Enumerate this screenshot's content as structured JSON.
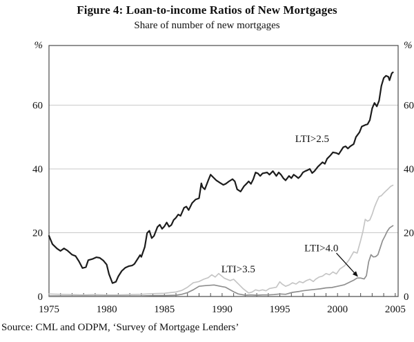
{
  "figure": {
    "title": "Figure 4: Loan-to-income Ratios of New Mortgages",
    "subtitle": "Share of number of new mortgages",
    "source": "Source: CML and ODPM, ‘Survey of Mortgage Lenders’"
  },
  "chart_data": {
    "type": "line",
    "title": "Figure 4: Loan-to-income Ratios of New Mortgages",
    "subtitle": "Share of number of new mortgages",
    "unit": "%",
    "x_axis": {
      "min": 1975,
      "max": 2005.25,
      "tick_interval": 1,
      "tick_labels": [
        1975,
        1980,
        1985,
        1990,
        1995,
        2000,
        2005
      ]
    },
    "y_axis": {
      "min": 0,
      "max": 78.7,
      "unit_label": "%",
      "gridlines": [
        20,
        40,
        60
      ],
      "tick_labels": [
        0,
        20,
        40,
        60
      ],
      "sides": "both",
      "grid": true
    },
    "legend_position": "inline-annotations",
    "style": {
      "frame_color": "#4a4a4a",
      "grid_color": "#c9c9c9",
      "tick_color": "#4a4a4a",
      "text_color": "#111111",
      "arrow_color": "#111111",
      "background": "#ffffff"
    },
    "series": [
      {
        "name": "LTI>3.5",
        "color": "#c5c5c5",
        "width": 1.7,
        "points": [
          [
            1975.0,
            0.8
          ],
          [
            1976.0,
            0.7
          ],
          [
            1977.0,
            0.6
          ],
          [
            1978.0,
            0.5
          ],
          [
            1979.0,
            0.6
          ],
          [
            1980.0,
            0.5
          ],
          [
            1981.0,
            0.5
          ],
          [
            1982.0,
            0.6
          ],
          [
            1983.0,
            0.7
          ],
          [
            1984.0,
            0.9
          ],
          [
            1985.0,
            1.0
          ],
          [
            1985.5,
            1.2
          ],
          [
            1986.0,
            1.4
          ],
          [
            1986.5,
            1.9
          ],
          [
            1987.0,
            2.9
          ],
          [
            1987.5,
            4.3
          ],
          [
            1988.0,
            4.7
          ],
          [
            1988.4,
            5.4
          ],
          [
            1988.8,
            5.9
          ],
          [
            1989.1,
            6.8
          ],
          [
            1989.4,
            6.1
          ],
          [
            1989.7,
            7.2
          ],
          [
            1990.2,
            5.7
          ],
          [
            1990.7,
            5.0
          ],
          [
            1991.0,
            5.4
          ],
          [
            1991.5,
            3.6
          ],
          [
            1991.8,
            2.5
          ],
          [
            1992.3,
            1.1
          ],
          [
            1992.6,
            1.4
          ],
          [
            1992.9,
            2.1
          ],
          [
            1993.2,
            1.8
          ],
          [
            1993.5,
            2.1
          ],
          [
            1993.8,
            1.8
          ],
          [
            1994.1,
            2.5
          ],
          [
            1994.7,
            2.9
          ],
          [
            1995.0,
            4.6
          ],
          [
            1995.2,
            3.9
          ],
          [
            1995.5,
            3.2
          ],
          [
            1995.8,
            3.6
          ],
          [
            1996.1,
            4.3
          ],
          [
            1996.4,
            3.9
          ],
          [
            1996.7,
            4.7
          ],
          [
            1997.0,
            4.3
          ],
          [
            1997.3,
            5.0
          ],
          [
            1997.6,
            5.4
          ],
          [
            1997.9,
            4.7
          ],
          [
            1998.1,
            5.4
          ],
          [
            1998.4,
            6.1
          ],
          [
            1998.7,
            6.4
          ],
          [
            1999.0,
            7.2
          ],
          [
            1999.3,
            6.8
          ],
          [
            1999.6,
            7.7
          ],
          [
            1999.9,
            7.1
          ],
          [
            2000.2,
            8.6
          ],
          [
            2000.6,
            9.6
          ],
          [
            2001.0,
            11.5
          ],
          [
            2001.4,
            14.0
          ],
          [
            2001.7,
            13.6
          ],
          [
            2002.0,
            17.5
          ],
          [
            2002.2,
            20.4
          ],
          [
            2002.4,
            24.2
          ],
          [
            2002.6,
            23.6
          ],
          [
            2002.8,
            24.0
          ],
          [
            2003.0,
            25.8
          ],
          [
            2003.2,
            28.0
          ],
          [
            2003.4,
            29.8
          ],
          [
            2003.6,
            31.3
          ],
          [
            2003.8,
            31.6
          ],
          [
            2004.0,
            32.4
          ],
          [
            2004.2,
            33.1
          ],
          [
            2004.4,
            33.8
          ],
          [
            2004.6,
            34.5
          ],
          [
            2004.8,
            34.9
          ]
        ]
      },
      {
        "name": "LTI>4.0",
        "color": "#8e8e8e",
        "width": 1.7,
        "points": [
          [
            1975.0,
            0.2
          ],
          [
            1976.0,
            0.2
          ],
          [
            1977.0,
            0.2
          ],
          [
            1978.0,
            0.2
          ],
          [
            1979.0,
            0.2
          ],
          [
            1980.0,
            0.2
          ],
          [
            1981.0,
            0.2
          ],
          [
            1982.0,
            0.2
          ],
          [
            1983.0,
            0.2
          ],
          [
            1984.0,
            0.3
          ],
          [
            1985.0,
            0.3
          ],
          [
            1986.0,
            0.4
          ],
          [
            1986.5,
            0.7
          ],
          [
            1987.0,
            1.2
          ],
          [
            1987.5,
            2.1
          ],
          [
            1988.0,
            3.2
          ],
          [
            1988.5,
            3.4
          ],
          [
            1989.3,
            3.6
          ],
          [
            1990.0,
            3.1
          ],
          [
            1990.3,
            2.9
          ],
          [
            1991.0,
            1.5
          ],
          [
            1991.4,
            0.8
          ],
          [
            1992.0,
            0.4
          ],
          [
            1992.5,
            0.5
          ],
          [
            1993.0,
            0.4
          ],
          [
            1993.5,
            0.5
          ],
          [
            1994.0,
            0.5
          ],
          [
            1994.5,
            0.6
          ],
          [
            1995.0,
            0.8
          ],
          [
            1995.5,
            0.7
          ],
          [
            1996.1,
            1.3
          ],
          [
            1996.7,
            1.6
          ],
          [
            1997.0,
            1.8
          ],
          [
            1997.5,
            2.0
          ],
          [
            1998.0,
            2.2
          ],
          [
            1998.5,
            2.4
          ],
          [
            1999.0,
            2.7
          ],
          [
            1999.5,
            2.8
          ],
          [
            2000.0,
            3.2
          ],
          [
            2000.6,
            3.7
          ],
          [
            2001.0,
            4.4
          ],
          [
            2001.4,
            5.1
          ],
          [
            2001.7,
            5.8
          ],
          [
            2002.0,
            5.8
          ],
          [
            2002.3,
            5.5
          ],
          [
            2002.5,
            6.5
          ],
          [
            2002.7,
            10.9
          ],
          [
            2002.9,
            13.1
          ],
          [
            2003.1,
            12.4
          ],
          [
            2003.3,
            12.5
          ],
          [
            2003.5,
            13.1
          ],
          [
            2003.7,
            15.3
          ],
          [
            2003.9,
            17.5
          ],
          [
            2004.1,
            18.9
          ],
          [
            2004.3,
            20.4
          ],
          [
            2004.5,
            21.5
          ],
          [
            2004.8,
            22.2
          ]
        ]
      },
      {
        "name": "LTI>2.5",
        "color": "#1c1c1c",
        "width": 2.2,
        "points": [
          [
            1975.0,
            19.0
          ],
          [
            1975.3,
            16.4
          ],
          [
            1975.7,
            15.0
          ],
          [
            1976.0,
            14.3
          ],
          [
            1976.3,
            15.1
          ],
          [
            1976.6,
            14.4
          ],
          [
            1977.0,
            13.1
          ],
          [
            1977.3,
            12.7
          ],
          [
            1977.6,
            11.0
          ],
          [
            1977.9,
            8.9
          ],
          [
            1978.2,
            9.2
          ],
          [
            1978.4,
            11.4
          ],
          [
            1978.8,
            11.8
          ],
          [
            1979.1,
            12.3
          ],
          [
            1979.4,
            12.1
          ],
          [
            1979.7,
            11.3
          ],
          [
            1980.0,
            10.0
          ],
          [
            1980.2,
            7.0
          ],
          [
            1980.5,
            4.2
          ],
          [
            1980.8,
            4.6
          ],
          [
            1981.0,
            6.3
          ],
          [
            1981.3,
            8.0
          ],
          [
            1981.6,
            9.0
          ],
          [
            1981.9,
            9.5
          ],
          [
            1982.2,
            9.7
          ],
          [
            1982.4,
            10.2
          ],
          [
            1982.7,
            11.9
          ],
          [
            1982.9,
            13.0
          ],
          [
            1983.0,
            12.4
          ],
          [
            1983.3,
            15.5
          ],
          [
            1983.5,
            19.9
          ],
          [
            1983.7,
            20.6
          ],
          [
            1983.9,
            18.3
          ],
          [
            1984.1,
            19.0
          ],
          [
            1984.4,
            21.8
          ],
          [
            1984.6,
            22.5
          ],
          [
            1984.8,
            21.2
          ],
          [
            1985.0,
            22.0
          ],
          [
            1985.2,
            23.2
          ],
          [
            1985.4,
            21.9
          ],
          [
            1985.6,
            22.4
          ],
          [
            1985.8,
            24.0
          ],
          [
            1986.0,
            24.7
          ],
          [
            1986.2,
            25.7
          ],
          [
            1986.4,
            25.3
          ],
          [
            1986.7,
            27.8
          ],
          [
            1986.9,
            28.2
          ],
          [
            1987.1,
            27.1
          ],
          [
            1987.4,
            29.3
          ],
          [
            1987.7,
            30.4
          ],
          [
            1988.0,
            30.8
          ],
          [
            1988.2,
            35.5
          ],
          [
            1988.3,
            34.3
          ],
          [
            1988.5,
            33.6
          ],
          [
            1988.8,
            36.4
          ],
          [
            1989.0,
            38.2
          ],
          [
            1989.2,
            37.5
          ],
          [
            1989.5,
            36.4
          ],
          [
            1989.8,
            35.7
          ],
          [
            1990.1,
            35.0
          ],
          [
            1990.3,
            35.3
          ],
          [
            1990.6,
            36.1
          ],
          [
            1990.9,
            36.8
          ],
          [
            1991.1,
            36.1
          ],
          [
            1991.3,
            33.6
          ],
          [
            1991.6,
            32.9
          ],
          [
            1991.9,
            34.6
          ],
          [
            1992.1,
            35.3
          ],
          [
            1992.3,
            36.1
          ],
          [
            1992.5,
            35.3
          ],
          [
            1992.7,
            36.8
          ],
          [
            1992.9,
            38.9
          ],
          [
            1993.1,
            38.6
          ],
          [
            1993.3,
            37.8
          ],
          [
            1993.5,
            38.6
          ],
          [
            1993.9,
            38.9
          ],
          [
            1994.1,
            38.2
          ],
          [
            1994.4,
            39.3
          ],
          [
            1994.7,
            37.8
          ],
          [
            1994.9,
            38.9
          ],
          [
            1995.1,
            38.2
          ],
          [
            1995.3,
            37.1
          ],
          [
            1995.5,
            36.4
          ],
          [
            1995.8,
            37.8
          ],
          [
            1996.0,
            37.1
          ],
          [
            1996.2,
            38.2
          ],
          [
            1996.4,
            37.7
          ],
          [
            1996.6,
            37.1
          ],
          [
            1996.8,
            37.8
          ],
          [
            1997.0,
            38.9
          ],
          [
            1997.2,
            39.3
          ],
          [
            1997.4,
            39.6
          ],
          [
            1997.6,
            40.0
          ],
          [
            1997.8,
            38.7
          ],
          [
            1998.0,
            39.3
          ],
          [
            1998.3,
            40.7
          ],
          [
            1998.5,
            41.4
          ],
          [
            1998.7,
            42.1
          ],
          [
            1998.9,
            41.6
          ],
          [
            1999.1,
            43.2
          ],
          [
            1999.4,
            44.3
          ],
          [
            1999.6,
            45.2
          ],
          [
            1999.9,
            45.0
          ],
          [
            2000.1,
            44.6
          ],
          [
            2000.3,
            45.7
          ],
          [
            2000.5,
            46.8
          ],
          [
            2000.7,
            47.1
          ],
          [
            2000.9,
            46.4
          ],
          [
            2001.1,
            47.1
          ],
          [
            2001.4,
            47.8
          ],
          [
            2001.6,
            50.0
          ],
          [
            2001.9,
            51.5
          ],
          [
            2002.1,
            53.3
          ],
          [
            2002.4,
            53.8
          ],
          [
            2002.6,
            54.0
          ],
          [
            2002.8,
            55.3
          ],
          [
            2003.0,
            59.0
          ],
          [
            2003.2,
            60.7
          ],
          [
            2003.4,
            59.6
          ],
          [
            2003.6,
            61.4
          ],
          [
            2003.8,
            66.0
          ],
          [
            2004.0,
            68.5
          ],
          [
            2004.2,
            69.2
          ],
          [
            2004.4,
            68.9
          ],
          [
            2004.5,
            67.8
          ],
          [
            2004.7,
            70.0
          ],
          [
            2004.8,
            70.3
          ]
        ]
      }
    ],
    "annotations": [
      {
        "text": "LTI>2.5",
        "x": 1997.8,
        "y": 49.5
      },
      {
        "text": "LTI>3.5",
        "x": 1991.4,
        "y": 8.6
      },
      {
        "text": "LTI>4.0",
        "x": 1998.6,
        "y": 15.2,
        "arrow": {
          "from": [
            1999.9,
            13.6
          ],
          "to": [
            2001.73,
            6.35
          ]
        }
      }
    ]
  }
}
